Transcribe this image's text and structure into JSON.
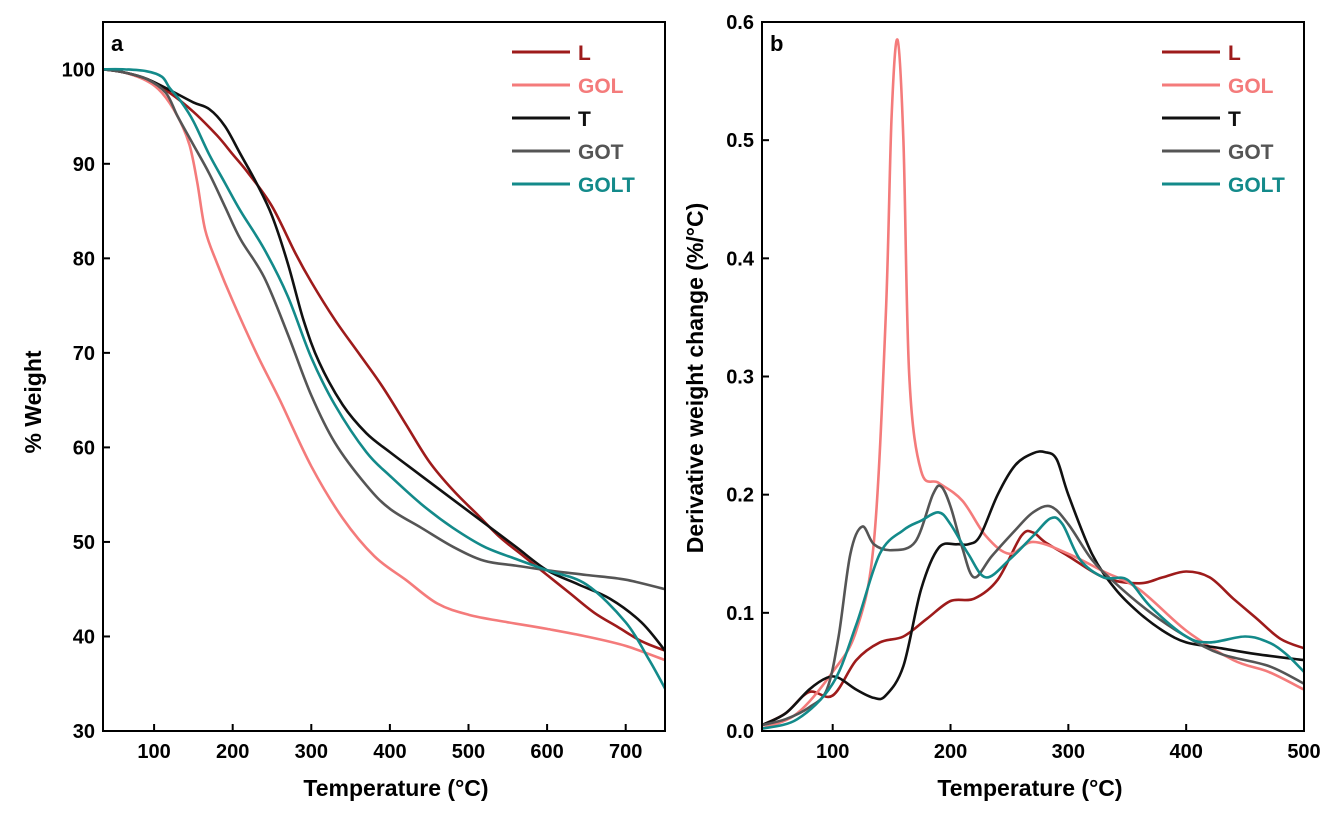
{
  "chart_data": [
    {
      "type": "line",
      "panel_label": "a",
      "title": "",
      "xlabel": "Temperature (°C)",
      "ylabel": "% Weight",
      "xlim": [
        35,
        750
      ],
      "ylim": [
        30,
        105
      ],
      "xticks": [
        100,
        200,
        300,
        400,
        500,
        600,
        700
      ],
      "yticks": [
        30,
        40,
        50,
        60,
        70,
        80,
        90,
        100
      ],
      "legend_position": "top-right",
      "series": [
        {
          "name": "L",
          "color": "#9e1b1b",
          "x": [
            35,
            60,
            90,
            120,
            150,
            180,
            200,
            220,
            250,
            280,
            300,
            330,
            360,
            390,
            420,
            450,
            480,
            510,
            540,
            570,
            600,
            630,
            660,
            690,
            720,
            750
          ],
          "y": [
            100,
            99.7,
            99,
            97.5,
            95.5,
            93,
            91,
            89,
            85.5,
            80.5,
            77.5,
            73.5,
            70,
            66.5,
            62.5,
            58.5,
            55.5,
            53,
            50.5,
            48.5,
            46.5,
            44.5,
            42.5,
            41,
            39.5,
            38.5
          ]
        },
        {
          "name": "GOL",
          "color": "#f47b7b",
          "x": [
            35,
            60,
            90,
            110,
            130,
            145,
            155,
            165,
            180,
            200,
            230,
            260,
            300,
            340,
            380,
            420,
            460,
            500,
            550,
            600,
            650,
            700,
            750
          ],
          "y": [
            100,
            99.7,
            98.8,
            97.5,
            95,
            92,
            88,
            83,
            79.5,
            75.5,
            70,
            65,
            58,
            52.5,
            48.5,
            46,
            43.5,
            42.3,
            41.5,
            40.8,
            40,
            39,
            37.5
          ]
        },
        {
          "name": "T",
          "color": "#111111",
          "x": [
            35,
            60,
            90,
            120,
            150,
            170,
            190,
            210,
            230,
            250,
            270,
            290,
            310,
            340,
            370,
            400,
            440,
            480,
            520,
            560,
            600,
            640,
            680,
            720,
            750
          ],
          "y": [
            100,
            99.7,
            99,
            97.8,
            96.5,
            95.8,
            94,
            91,
            88,
            84.5,
            79.5,
            73.5,
            69,
            64.5,
            61.5,
            59.5,
            57,
            54.5,
            52,
            49.5,
            47,
            45.5,
            44,
            41.5,
            38.5
          ]
        },
        {
          "name": "GOT",
          "color": "#555555",
          "x": [
            35,
            60,
            90,
            115,
            130,
            150,
            170,
            190,
            210,
            240,
            270,
            300,
            330,
            370,
            400,
            440,
            480,
            520,
            560,
            600,
            650,
            700,
            750
          ],
          "y": [
            100,
            99.7,
            99,
            97.5,
            95,
            92,
            89,
            85.5,
            82,
            78,
            72,
            65.5,
            60.5,
            56,
            53.5,
            51.5,
            49.5,
            48,
            47.5,
            47,
            46.5,
            46,
            45
          ]
        },
        {
          "name": "GOLT",
          "color": "#138a8a",
          "x": [
            35,
            60,
            90,
            110,
            120,
            135,
            150,
            170,
            190,
            210,
            240,
            270,
            300,
            330,
            370,
            400,
            440,
            480,
            520,
            560,
            600,
            650,
            700,
            730,
            750
          ],
          "y": [
            100,
            100,
            99.8,
            99.2,
            98,
            96.5,
            94.5,
            91,
            88,
            85,
            81,
            76,
            69.5,
            64.5,
            59.5,
            57,
            54,
            51.5,
            49.5,
            48.2,
            47,
            45.5,
            41.5,
            37.5,
            34.5
          ]
        }
      ]
    },
    {
      "type": "line",
      "panel_label": "b",
      "title": "",
      "xlabel": "Temperature (°C)",
      "ylabel": "Derivative weight change (%/°C)",
      "xlim": [
        40,
        500
      ],
      "ylim": [
        0,
        0.6
      ],
      "xticks": [
        100,
        200,
        300,
        400,
        500
      ],
      "yticks": [
        0.0,
        0.1,
        0.2,
        0.3,
        0.4,
        0.5,
        0.6
      ],
      "ytick_labels": [
        "0.0",
        "0.1",
        "0.2",
        "0.3",
        "0.4",
        "0.5",
        "0.6"
      ],
      "legend_position": "top-right",
      "series": [
        {
          "name": "L",
          "color": "#9e1b1b",
          "x": [
            40,
            60,
            80,
            100,
            120,
            140,
            160,
            180,
            200,
            220,
            240,
            260,
            270,
            280,
            300,
            330,
            360,
            380,
            400,
            420,
            440,
            460,
            480,
            500
          ],
          "y": [
            0.005,
            0.015,
            0.033,
            0.03,
            0.06,
            0.075,
            0.08,
            0.095,
            0.11,
            0.112,
            0.128,
            0.165,
            0.168,
            0.16,
            0.148,
            0.13,
            0.125,
            0.13,
            0.135,
            0.13,
            0.112,
            0.095,
            0.078,
            0.07
          ]
        },
        {
          "name": "GOL",
          "color": "#f47b7b",
          "x": [
            40,
            70,
            100,
            120,
            135,
            145,
            150,
            155,
            160,
            165,
            175,
            190,
            210,
            230,
            250,
            270,
            300,
            330,
            360,
            400,
            440,
            470,
            500
          ],
          "y": [
            0.002,
            0.015,
            0.05,
            0.085,
            0.16,
            0.35,
            0.52,
            0.585,
            0.5,
            0.3,
            0.22,
            0.21,
            0.195,
            0.165,
            0.15,
            0.16,
            0.15,
            0.135,
            0.12,
            0.085,
            0.06,
            0.05,
            0.035
          ]
        },
        {
          "name": "T",
          "color": "#111111",
          "x": [
            40,
            60,
            80,
            95,
            105,
            120,
            135,
            145,
            160,
            175,
            190,
            205,
            215,
            225,
            240,
            255,
            270,
            280,
            290,
            300,
            320,
            340,
            360,
            380,
            400,
            430,
            460,
            500
          ],
          "y": [
            0.005,
            0.015,
            0.035,
            0.045,
            0.045,
            0.035,
            0.028,
            0.03,
            0.055,
            0.12,
            0.155,
            0.158,
            0.158,
            0.165,
            0.2,
            0.225,
            0.235,
            0.236,
            0.23,
            0.2,
            0.15,
            0.12,
            0.1,
            0.085,
            0.075,
            0.07,
            0.065,
            0.06
          ]
        },
        {
          "name": "GOT",
          "color": "#555555",
          "x": [
            40,
            60,
            80,
            95,
            105,
            115,
            125,
            135,
            150,
            170,
            185,
            192,
            200,
            210,
            220,
            235,
            255,
            270,
            285,
            300,
            320,
            340,
            370,
            400,
            430,
            470,
            500
          ],
          "y": [
            0.005,
            0.01,
            0.02,
            0.035,
            0.08,
            0.15,
            0.173,
            0.158,
            0.153,
            0.16,
            0.2,
            0.207,
            0.19,
            0.155,
            0.13,
            0.148,
            0.17,
            0.185,
            0.19,
            0.175,
            0.145,
            0.125,
            0.1,
            0.08,
            0.065,
            0.055,
            0.04
          ]
        },
        {
          "name": "GOLT",
          "color": "#138a8a",
          "x": [
            40,
            70,
            100,
            120,
            140,
            160,
            175,
            190,
            200,
            215,
            230,
            250,
            270,
            285,
            295,
            310,
            330,
            350,
            370,
            400,
            420,
            450,
            470,
            485,
            500
          ],
          "y": [
            0.002,
            0.01,
            0.04,
            0.09,
            0.15,
            0.17,
            0.178,
            0.185,
            0.175,
            0.15,
            0.13,
            0.145,
            0.165,
            0.18,
            0.175,
            0.145,
            0.13,
            0.128,
            0.105,
            0.08,
            0.075,
            0.08,
            0.075,
            0.065,
            0.05
          ]
        }
      ]
    }
  ]
}
